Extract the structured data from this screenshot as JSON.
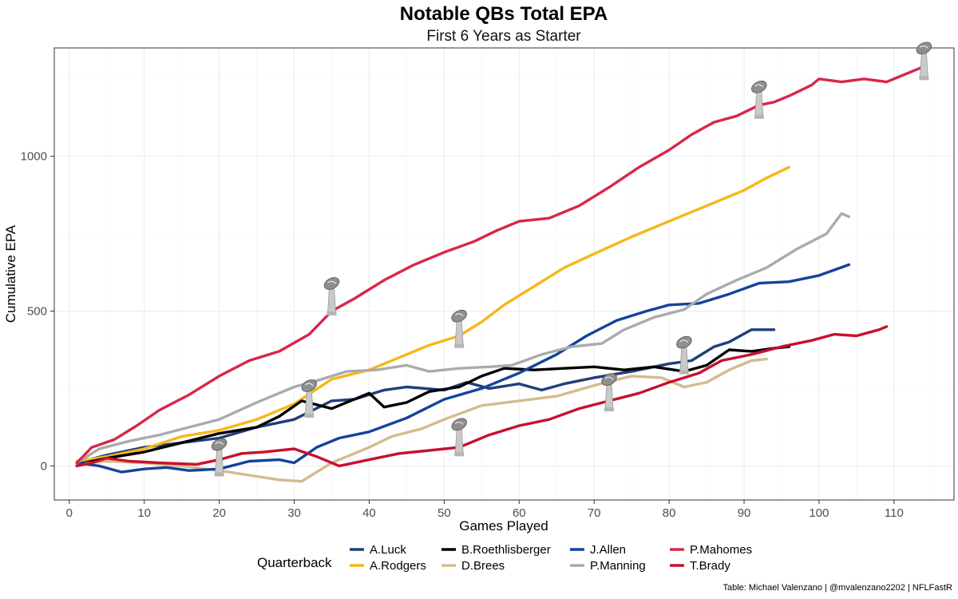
{
  "chart_data": {
    "type": "line",
    "title": "Notable QBs Total EPA",
    "subtitle": "First 6 Years as Starter",
    "xlabel": "Games Played",
    "ylabel": "Cumulative EPA",
    "xlim": [
      -2,
      118
    ],
    "ylim": [
      -110,
      1350
    ],
    "x_ticks": [
      0,
      10,
      20,
      30,
      40,
      50,
      60,
      70,
      80,
      90,
      100,
      110
    ],
    "y_ticks": [
      0,
      500,
      1000
    ],
    "grid": true,
    "legend": {
      "title": "Quarterback",
      "position": "bottom"
    },
    "caption": "Table: Michael Valenzano | @mvalenzano2202 | NFLFastR",
    "trophy_icon": "super-bowl-trophy-icon",
    "series": [
      {
        "name": "A.Luck",
        "color": "#1f3f7a",
        "points": [
          [
            1,
            10
          ],
          [
            5,
            35
          ],
          [
            10,
            60
          ],
          [
            15,
            75
          ],
          [
            20,
            90
          ],
          [
            25,
            125
          ],
          [
            30,
            150
          ],
          [
            35,
            210
          ],
          [
            38,
            215
          ],
          [
            42,
            245
          ],
          [
            45,
            255
          ],
          [
            50,
            245
          ],
          [
            53,
            270
          ],
          [
            56,
            250
          ],
          [
            60,
            265
          ],
          [
            63,
            245
          ],
          [
            66,
            265
          ],
          [
            70,
            285
          ],
          [
            75,
            305
          ],
          [
            80,
            330
          ],
          [
            83,
            340
          ],
          [
            86,
            385
          ],
          [
            88,
            400
          ],
          [
            91,
            440
          ],
          [
            94,
            440
          ]
        ]
      },
      {
        "name": "A.Rodgers",
        "color": "#f7b718",
        "points": [
          [
            1,
            15
          ],
          [
            5,
            30
          ],
          [
            10,
            55
          ],
          [
            15,
            95
          ],
          [
            20,
            115
          ],
          [
            25,
            150
          ],
          [
            30,
            200
          ],
          [
            35,
            280
          ],
          [
            40,
            310
          ],
          [
            45,
            360
          ],
          [
            48,
            390
          ],
          [
            52,
            420
          ],
          [
            55,
            465
          ],
          [
            58,
            520
          ],
          [
            62,
            580
          ],
          [
            66,
            640
          ],
          [
            70,
            685
          ],
          [
            75,
            740
          ],
          [
            80,
            790
          ],
          [
            85,
            840
          ],
          [
            90,
            890
          ],
          [
            93,
            930
          ],
          [
            96,
            965
          ]
        ]
      },
      {
        "name": "B.Roethlisberger",
        "color": "#000000",
        "points": [
          [
            1,
            5
          ],
          [
            5,
            25
          ],
          [
            10,
            45
          ],
          [
            15,
            75
          ],
          [
            20,
            105
          ],
          [
            25,
            125
          ],
          [
            28,
            160
          ],
          [
            31,
            210
          ],
          [
            35,
            185
          ],
          [
            40,
            235
          ],
          [
            42,
            190
          ],
          [
            45,
            205
          ],
          [
            48,
            240
          ],
          [
            52,
            255
          ],
          [
            55,
            290
          ],
          [
            58,
            315
          ],
          [
            62,
            310
          ],
          [
            66,
            315
          ],
          [
            70,
            320
          ],
          [
            74,
            310
          ],
          [
            78,
            320
          ],
          [
            82,
            305
          ],
          [
            85,
            325
          ],
          [
            88,
            375
          ],
          [
            91,
            370
          ],
          [
            94,
            380
          ],
          [
            96,
            385
          ]
        ]
      },
      {
        "name": "D.Brees",
        "color": "#d3bc8d",
        "points": [
          [
            1,
            5
          ],
          [
            5,
            15
          ],
          [
            10,
            10
          ],
          [
            15,
            0
          ],
          [
            20,
            -15
          ],
          [
            24,
            -30
          ],
          [
            28,
            -45
          ],
          [
            31,
            -50
          ],
          [
            35,
            10
          ],
          [
            40,
            60
          ],
          [
            43,
            95
          ],
          [
            47,
            120
          ],
          [
            50,
            150
          ],
          [
            55,
            195
          ],
          [
            60,
            210
          ],
          [
            65,
            225
          ],
          [
            70,
            260
          ],
          [
            75,
            290
          ],
          [
            79,
            285
          ],
          [
            82,
            255
          ],
          [
            85,
            270
          ],
          [
            88,
            310
          ],
          [
            91,
            340
          ],
          [
            93,
            345
          ]
        ]
      },
      {
        "name": "J.Allen",
        "color": "#13449c",
        "points": [
          [
            1,
            10
          ],
          [
            4,
            0
          ],
          [
            7,
            -20
          ],
          [
            10,
            -10
          ],
          [
            13,
            -5
          ],
          [
            16,
            -15
          ],
          [
            20,
            -10
          ],
          [
            24,
            15
          ],
          [
            28,
            20
          ],
          [
            30,
            10
          ],
          [
            33,
            60
          ],
          [
            36,
            90
          ],
          [
            40,
            110
          ],
          [
            45,
            155
          ],
          [
            50,
            215
          ],
          [
            55,
            250
          ],
          [
            60,
            300
          ],
          [
            65,
            360
          ],
          [
            69,
            420
          ],
          [
            73,
            470
          ],
          [
            77,
            500
          ],
          [
            80,
            520
          ],
          [
            84,
            525
          ],
          [
            88,
            555
          ],
          [
            92,
            590
          ],
          [
            96,
            595
          ],
          [
            100,
            615
          ],
          [
            104,
            650
          ]
        ]
      },
      {
        "name": "P.Manning",
        "color": "#a9acae",
        "points": [
          [
            1,
            10
          ],
          [
            4,
            55
          ],
          [
            8,
            80
          ],
          [
            12,
            100
          ],
          [
            16,
            125
          ],
          [
            20,
            150
          ],
          [
            25,
            205
          ],
          [
            30,
            255
          ],
          [
            33,
            275
          ],
          [
            37,
            305
          ],
          [
            41,
            310
          ],
          [
            45,
            325
          ],
          [
            48,
            305
          ],
          [
            52,
            315
          ],
          [
            56,
            320
          ],
          [
            59,
            325
          ],
          [
            63,
            360
          ],
          [
            67,
            385
          ],
          [
            71,
            395
          ],
          [
            74,
            440
          ],
          [
            78,
            480
          ],
          [
            82,
            505
          ],
          [
            85,
            555
          ],
          [
            89,
            600
          ],
          [
            93,
            640
          ],
          [
            97,
            700
          ],
          [
            101,
            750
          ],
          [
            103,
            815
          ],
          [
            104,
            805
          ]
        ]
      },
      {
        "name": "P.Mahomes",
        "color": "#d7274a",
        "points": [
          [
            1,
            10
          ],
          [
            3,
            60
          ],
          [
            6,
            85
          ],
          [
            9,
            130
          ],
          [
            12,
            180
          ],
          [
            16,
            230
          ],
          [
            20,
            290
          ],
          [
            24,
            340
          ],
          [
            28,
            370
          ],
          [
            32,
            425
          ],
          [
            35,
            500
          ],
          [
            38,
            540
          ],
          [
            42,
            600
          ],
          [
            46,
            650
          ],
          [
            50,
            690
          ],
          [
            54,
            725
          ],
          [
            57,
            760
          ],
          [
            60,
            790
          ],
          [
            64,
            800
          ],
          [
            68,
            840
          ],
          [
            72,
            900
          ],
          [
            76,
            965
          ],
          [
            80,
            1020
          ],
          [
            83,
            1070
          ],
          [
            86,
            1110
          ],
          [
            89,
            1130
          ],
          [
            92,
            1165
          ],
          [
            94,
            1175
          ],
          [
            96,
            1195
          ],
          [
            99,
            1230
          ],
          [
            100,
            1250
          ],
          [
            103,
            1240
          ],
          [
            106,
            1250
          ],
          [
            109,
            1240
          ],
          [
            112,
            1270
          ],
          [
            114,
            1290
          ]
        ]
      },
      {
        "name": "T.Brady",
        "color": "#c8102e",
        "points": [
          [
            1,
            0
          ],
          [
            3,
            10
          ],
          [
            5,
            25
          ],
          [
            8,
            15
          ],
          [
            12,
            10
          ],
          [
            17,
            5
          ],
          [
            20,
            20
          ],
          [
            23,
            40
          ],
          [
            26,
            45
          ],
          [
            30,
            55
          ],
          [
            33,
            30
          ],
          [
            36,
            0
          ],
          [
            40,
            20
          ],
          [
            44,
            40
          ],
          [
            48,
            50
          ],
          [
            52,
            60
          ],
          [
            56,
            100
          ],
          [
            60,
            130
          ],
          [
            64,
            150
          ],
          [
            68,
            185
          ],
          [
            72,
            210
          ],
          [
            76,
            235
          ],
          [
            80,
            270
          ],
          [
            84,
            300
          ],
          [
            87,
            340
          ],
          [
            91,
            360
          ],
          [
            95,
            385
          ],
          [
            99,
            405
          ],
          [
            102,
            425
          ],
          [
            105,
            420
          ],
          [
            108,
            440
          ],
          [
            109,
            450
          ]
        ]
      }
    ],
    "trophies": [
      {
        "x": 20,
        "y": 15
      },
      {
        "x": 32,
        "y": 205
      },
      {
        "x": 35,
        "y": 535
      },
      {
        "x": 52,
        "y": 430
      },
      {
        "x": 52,
        "y": 80
      },
      {
        "x": 72,
        "y": 225
      },
      {
        "x": 82,
        "y": 345
      },
      {
        "x": 92,
        "y": 1170
      },
      {
        "x": 114,
        "y": 1295
      }
    ]
  }
}
